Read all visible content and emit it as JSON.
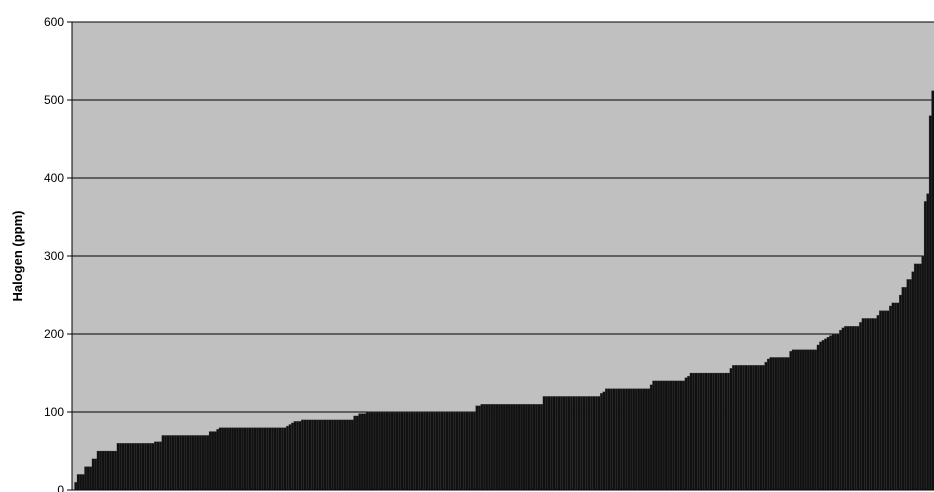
{
  "chart_data": {
    "type": "bar",
    "title": "",
    "xlabel": "",
    "ylabel": "Halogen (ppm)",
    "ylim": [
      0,
      600
    ],
    "yticks": [
      "0",
      "100",
      "200",
      "300",
      "400",
      "500",
      "600"
    ],
    "grid": true,
    "legend": "none",
    "colors": {
      "plot_background": "#c0c0c0",
      "bar": "#111111",
      "gridline": "#000000"
    },
    "series": [
      {
        "values": [
          0,
          10,
          20,
          20,
          20,
          30,
          30,
          30,
          40,
          40,
          50,
          50,
          50,
          50,
          50,
          50,
          50,
          50,
          60,
          60,
          60,
          60,
          60,
          60,
          60,
          60,
          60,
          60,
          60,
          60,
          60,
          60,
          60,
          62,
          62,
          62,
          70,
          70,
          70,
          70,
          70,
          70,
          70,
          70,
          70,
          70,
          70,
          70,
          70,
          70,
          70,
          70,
          70,
          70,
          70,
          75,
          75,
          75,
          78,
          80,
          80,
          80,
          80,
          80,
          80,
          80,
          80,
          80,
          80,
          80,
          80,
          80,
          80,
          80,
          80,
          80,
          80,
          80,
          80,
          80,
          80,
          80,
          80,
          80,
          80,
          80,
          82,
          84,
          86,
          88,
          88,
          88,
          90,
          90,
          90,
          90,
          90,
          90,
          90,
          90,
          90,
          90,
          90,
          90,
          90,
          90,
          90,
          90,
          90,
          90,
          90,
          90,
          90,
          95,
          95,
          98,
          98,
          98,
          100,
          100,
          100,
          100,
          100,
          100,
          100,
          100,
          100,
          100,
          100,
          100,
          100,
          100,
          100,
          100,
          100,
          100,
          100,
          100,
          100,
          100,
          100,
          100,
          100,
          100,
          100,
          100,
          100,
          100,
          100,
          100,
          100,
          100,
          100,
          100,
          100,
          100,
          100,
          100,
          100,
          100,
          100,
          100,
          108,
          108,
          110,
          110,
          110,
          110,
          110,
          110,
          110,
          110,
          110,
          110,
          110,
          110,
          110,
          110,
          110,
          110,
          110,
          110,
          110,
          110,
          110,
          110,
          110,
          110,
          110,
          120,
          120,
          120,
          120,
          120,
          120,
          120,
          120,
          120,
          120,
          120,
          120,
          120,
          120,
          120,
          120,
          120,
          120,
          120,
          120,
          120,
          120,
          120,
          124,
          126,
          130,
          130,
          130,
          130,
          130,
          130,
          130,
          130,
          130,
          130,
          130,
          130,
          130,
          130,
          130,
          130,
          130,
          130,
          135,
          140,
          140,
          140,
          140,
          140,
          140,
          140,
          140,
          140,
          140,
          140,
          140,
          140,
          144,
          146,
          150,
          150,
          150,
          150,
          150,
          150,
          150,
          150,
          150,
          150,
          150,
          150,
          150,
          150,
          150,
          150,
          156,
          160,
          160,
          160,
          160,
          160,
          160,
          160,
          160,
          160,
          160,
          160,
          160,
          160,
          164,
          168,
          170,
          170,
          170,
          170,
          170,
          170,
          170,
          170,
          178,
          180,
          180,
          180,
          180,
          180,
          180,
          180,
          180,
          180,
          180,
          186,
          190,
          192,
          194,
          196,
          198,
          200,
          200,
          200,
          205,
          208,
          210,
          210,
          210,
          210,
          210,
          210,
          215,
          220,
          220,
          220,
          220,
          220,
          220,
          224,
          230,
          230,
          230,
          230,
          236,
          240,
          240,
          240,
          250,
          260,
          260,
          270,
          270,
          280,
          290,
          290,
          290,
          300,
          370,
          380,
          480,
          512
        ]
      }
    ]
  }
}
